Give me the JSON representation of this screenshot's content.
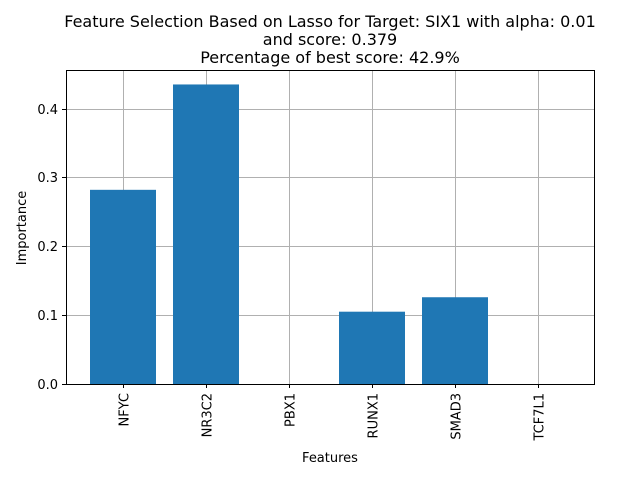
{
  "chart_data": {
    "type": "bar",
    "title_lines": [
      "Feature Selection Based on Lasso for Target: SIX1 with alpha: 0.01",
      "and score: 0.379",
      "Percentage of best score: 42.9%"
    ],
    "xlabel": "Features",
    "ylabel": "Importance",
    "categories": [
      "NFYC",
      "NR3C2",
      "PBX1",
      "RUNX1",
      "SMAD3",
      "TCF7L1"
    ],
    "values": [
      0.282,
      0.435,
      0.0,
      0.105,
      0.126,
      0.0
    ],
    "ylim": [
      0,
      0.456
    ],
    "yticks": [
      "0.0",
      "0.1",
      "0.2",
      "0.3",
      "0.4"
    ],
    "grid": true,
    "bar_color": "#1f77b4"
  }
}
